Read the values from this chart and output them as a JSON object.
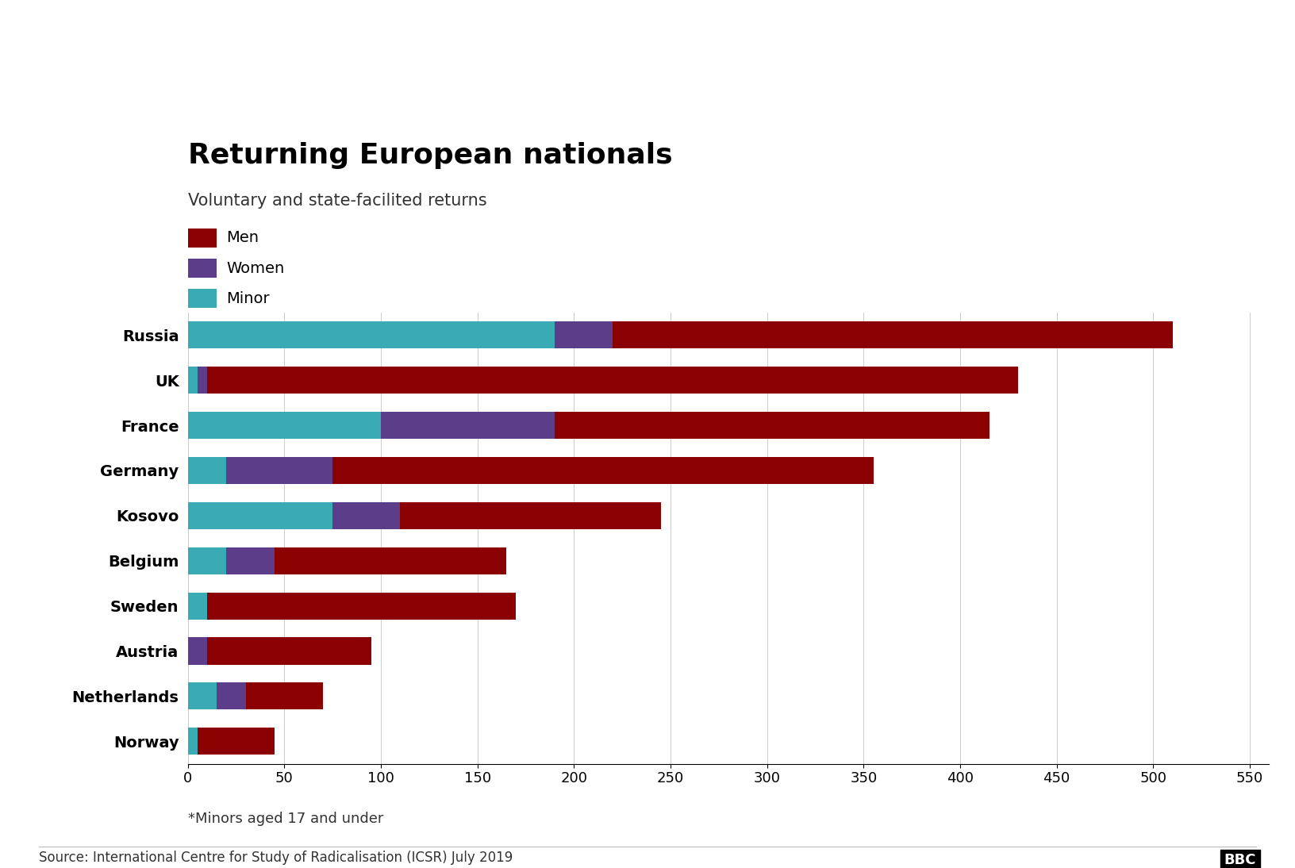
{
  "title": "Returning European nationals",
  "subtitle": "Voluntary and state-facilited returns",
  "footnote": "*Minors aged 17 and under",
  "source": "Source: International Centre for Study of Radicalisation (ICSR) July 2019",
  "categories": [
    "Russia",
    "UK",
    "France",
    "Germany",
    "Kosovo",
    "Belgium",
    "Sweden",
    "Austria",
    "Netherlands",
    "Norway"
  ],
  "minors": [
    190,
    5,
    100,
    20,
    75,
    20,
    10,
    0,
    15,
    5
  ],
  "women": [
    30,
    5,
    90,
    55,
    35,
    25,
    0,
    10,
    15,
    0
  ],
  "men": [
    290,
    420,
    225,
    280,
    135,
    120,
    160,
    85,
    40,
    40
  ],
  "color_minor": "#3aabb5",
  "color_women": "#5b3d8a",
  "color_men": "#8b0000",
  "xlim": [
    0,
    560
  ],
  "xticks": [
    0,
    50,
    100,
    150,
    200,
    250,
    300,
    350,
    400,
    450,
    500,
    550
  ],
  "background_color": "#ffffff",
  "title_fontsize": 26,
  "subtitle_fontsize": 15,
  "label_fontsize": 14,
  "tick_fontsize": 13,
  "legend_fontsize": 14,
  "footnote_fontsize": 13,
  "source_fontsize": 12
}
